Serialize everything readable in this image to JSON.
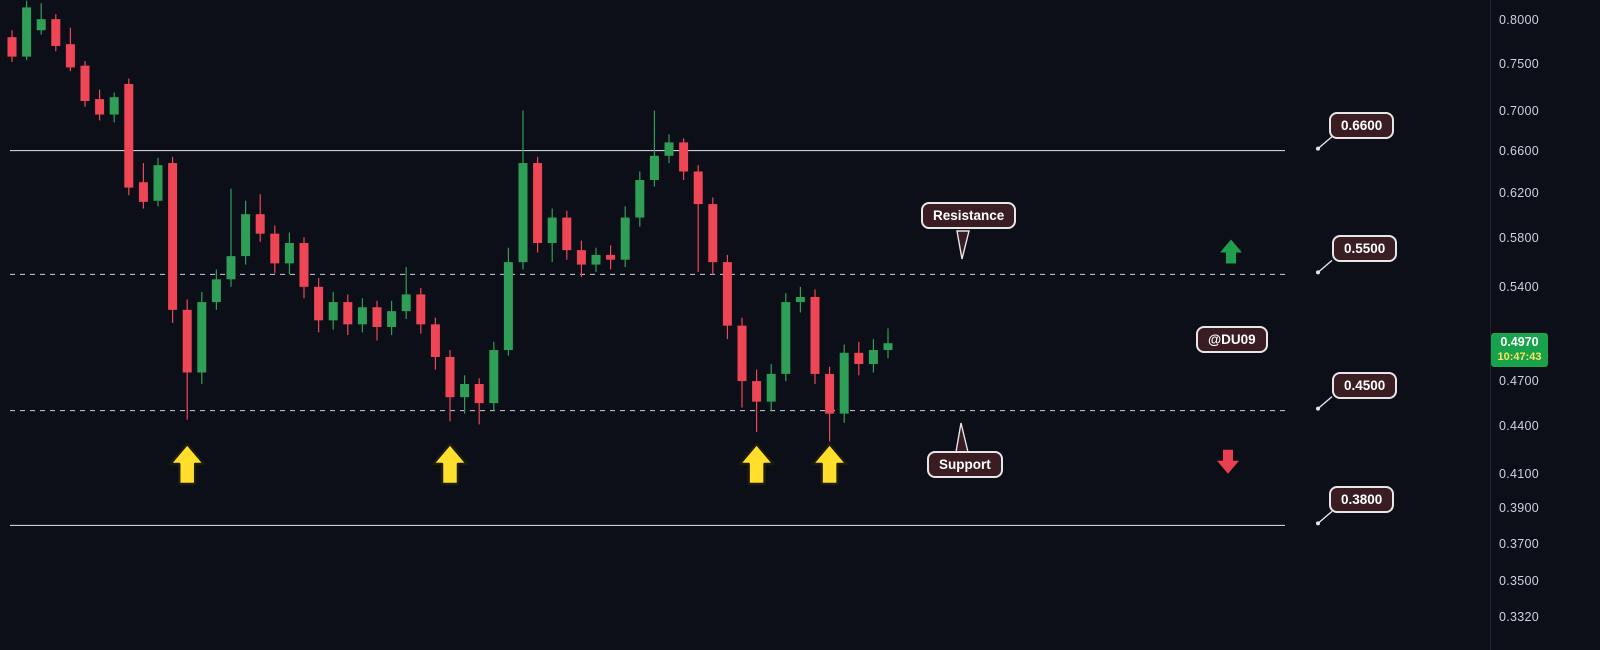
{
  "chart_data": {
    "type": "candlestick",
    "price_scale": "log",
    "grid": "off",
    "y_ticks": [
      "0.8000",
      "0.7500",
      "0.7000",
      "0.6600",
      "0.6200",
      "0.5800",
      "0.5400",
      "0.4700",
      "0.4400",
      "0.4100",
      "0.3900",
      "0.3700",
      "0.3500",
      "0.3320"
    ],
    "ylim": [
      0.316,
      0.824
    ],
    "candles": [
      [
        0.78,
        0.788,
        0.752,
        0.758
      ],
      [
        0.758,
        0.823,
        0.754,
        0.815
      ],
      [
        0.788,
        0.82,
        0.783,
        0.801
      ],
      [
        0.801,
        0.807,
        0.764,
        0.77
      ],
      [
        0.772,
        0.791,
        0.742,
        0.746
      ],
      [
        0.748,
        0.753,
        0.704,
        0.71
      ],
      [
        0.712,
        0.722,
        0.69,
        0.696
      ],
      [
        0.696,
        0.719,
        0.688,
        0.714
      ],
      [
        0.728,
        0.734,
        0.618,
        0.625
      ],
      [
        0.63,
        0.648,
        0.606,
        0.612
      ],
      [
        0.613,
        0.653,
        0.608,
        0.646
      ],
      [
        0.648,
        0.654,
        0.512,
        0.522
      ],
      [
        0.522,
        0.53,
        0.444,
        0.476
      ],
      [
        0.476,
        0.536,
        0.468,
        0.528
      ],
      [
        0.528,
        0.554,
        0.522,
        0.546
      ],
      [
        0.546,
        0.624,
        0.54,
        0.565
      ],
      [
        0.565,
        0.613,
        0.558,
        0.601
      ],
      [
        0.601,
        0.619,
        0.577,
        0.584
      ],
      [
        0.584,
        0.591,
        0.551,
        0.559
      ],
      [
        0.559,
        0.585,
        0.55,
        0.576
      ],
      [
        0.576,
        0.581,
        0.531,
        0.54
      ],
      [
        0.54,
        0.547,
        0.505,
        0.514
      ],
      [
        0.514,
        0.536,
        0.507,
        0.528
      ],
      [
        0.528,
        0.534,
        0.503,
        0.511
      ],
      [
        0.511,
        0.531,
        0.505,
        0.524
      ],
      [
        0.524,
        0.529,
        0.499,
        0.509
      ],
      [
        0.509,
        0.529,
        0.503,
        0.521
      ],
      [
        0.521,
        0.556,
        0.515,
        0.534
      ],
      [
        0.534,
        0.539,
        0.504,
        0.511
      ],
      [
        0.511,
        0.516,
        0.478,
        0.487
      ],
      [
        0.487,
        0.492,
        0.443,
        0.459
      ],
      [
        0.459,
        0.474,
        0.448,
        0.468
      ],
      [
        0.468,
        0.472,
        0.441,
        0.455
      ],
      [
        0.455,
        0.498,
        0.45,
        0.492
      ],
      [
        0.492,
        0.572,
        0.488,
        0.56
      ],
      [
        0.56,
        0.7,
        0.554,
        0.648
      ],
      [
        0.648,
        0.654,
        0.568,
        0.576
      ],
      [
        0.576,
        0.606,
        0.56,
        0.598
      ],
      [
        0.598,
        0.604,
        0.562,
        0.57
      ],
      [
        0.57,
        0.578,
        0.548,
        0.558
      ],
      [
        0.558,
        0.572,
        0.552,
        0.566
      ],
      [
        0.566,
        0.574,
        0.554,
        0.562
      ],
      [
        0.562,
        0.608,
        0.556,
        0.598
      ],
      [
        0.598,
        0.64,
        0.59,
        0.632
      ],
      [
        0.632,
        0.7,
        0.626,
        0.655
      ],
      [
        0.655,
        0.676,
        0.648,
        0.668
      ],
      [
        0.668,
        0.672,
        0.632,
        0.64
      ],
      [
        0.64,
        0.646,
        0.552,
        0.61
      ],
      [
        0.61,
        0.616,
        0.55,
        0.56
      ],
      [
        0.56,
        0.566,
        0.5,
        0.51
      ],
      [
        0.51,
        0.516,
        0.452,
        0.47
      ],
      [
        0.47,
        0.478,
        0.436,
        0.456
      ],
      [
        0.456,
        0.482,
        0.45,
        0.475
      ],
      [
        0.475,
        0.535,
        0.47,
        0.528
      ],
      [
        0.528,
        0.54,
        0.52,
        0.532
      ],
      [
        0.532,
        0.538,
        0.468,
        0.475
      ],
      [
        0.475,
        0.48,
        0.43,
        0.448
      ],
      [
        0.448,
        0.496,
        0.442,
        0.49
      ],
      [
        0.49,
        0.498,
        0.474,
        0.482
      ],
      [
        0.482,
        0.5,
        0.476,
        0.492
      ],
      [
        0.492,
        0.508,
        0.486,
        0.497
      ]
    ],
    "levels": [
      {
        "price": 0.66,
        "label": "0.6600",
        "style": "solid"
      },
      {
        "price": 0.55,
        "label": "0.5500",
        "style": "dashed"
      },
      {
        "price": 0.45,
        "label": "0.4500",
        "style": "dashed"
      },
      {
        "price": 0.38,
        "label": "0.3800",
        "style": "solid"
      }
    ],
    "last_price": {
      "value": "0.4970",
      "time": "10:47:43"
    },
    "annotations": {
      "resistance_label": "Resistance",
      "support_label": "Support",
      "watermark_label": "@DU09",
      "buy_arrows_at_candles": [
        12,
        30,
        51,
        56
      ],
      "buy_arrow_icon": "yellow-up-arrow",
      "up_marker_icon": "green-up-arrow",
      "up_marker_price": 0.568,
      "down_marker_icon": "red-down-arrow",
      "down_marker_price": 0.418
    },
    "colors": {
      "up": "#2f9e56",
      "down": "#ef4656",
      "level_line": "#c9cdd6",
      "label_bg": "#3a1c23",
      "label_border": "#e6e6e6",
      "arrow_yellow": "#ffdf2b",
      "badge_green": "#17a24b",
      "badge_time_text": "#ffe25e",
      "background": "#0c0f18",
      "axis_text": "#cdd2dc"
    }
  }
}
